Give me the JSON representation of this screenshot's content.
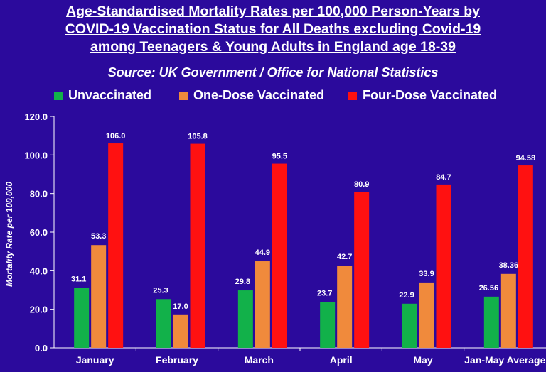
{
  "title_lines": [
    "Age-Standardised Mortality Rates per 100,000 Person-Years by",
    "COVID-19 Vaccination Status for All Deaths excluding Covid-19",
    "among Teenagers & Young Adults in England age 18-39"
  ],
  "subtitle": "Source: UK Government / Office for National Statistics",
  "legend": [
    {
      "label": "Unvaccinated",
      "color": "#12b14a"
    },
    {
      "label": "One-Dose Vaccinated",
      "color": "#f08a3c"
    },
    {
      "label": "Four-Dose Vaccinated",
      "color": "#ff1111"
    }
  ],
  "chart_data": {
    "type": "bar",
    "categories": [
      "January",
      "February",
      "March",
      "April",
      "May",
      "Jan-May Average"
    ],
    "series": [
      {
        "name": "Unvaccinated",
        "color": "#12b14a",
        "values": [
          31.1,
          25.3,
          29.8,
          23.7,
          22.9,
          26.56
        ],
        "labels": [
          "31.1",
          "25.3",
          "29.8",
          "23.7",
          "22.9",
          "26.56"
        ]
      },
      {
        "name": "One-Dose Vaccinated",
        "color": "#f08a3c",
        "values": [
          53.3,
          17.0,
          44.9,
          42.7,
          33.9,
          38.36
        ],
        "labels": [
          "53.3",
          "17.0",
          "44.9",
          "42.7",
          "33.9",
          "38.36"
        ]
      },
      {
        "name": "Four-Dose Vaccinated",
        "color": "#ff1111",
        "values": [
          106.0,
          105.8,
          95.5,
          80.9,
          84.7,
          94.58
        ],
        "labels": [
          "106.0",
          "105.8",
          "95.5",
          "80.9",
          "84.7",
          "94.58"
        ]
      }
    ],
    "ylabel": "Mortality Rate per 100,000",
    "ylim": [
      0,
      120
    ],
    "yticks": [
      "0.0",
      "20.0",
      "40.0",
      "60.0",
      "80.0",
      "100.0",
      "120.0"
    ],
    "grid": false,
    "legend_position": "top"
  }
}
